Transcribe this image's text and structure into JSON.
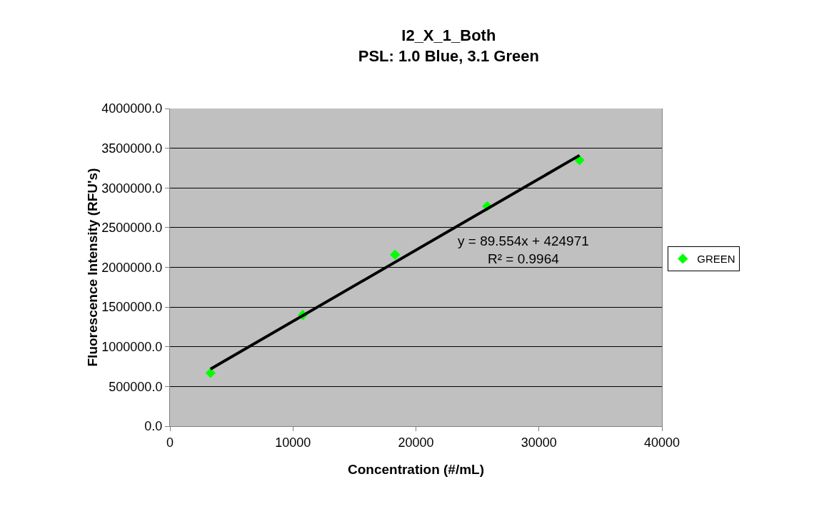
{
  "chart_data": {
    "type": "scatter",
    "title": "I2_X_1_Both\nPSL: 1.0 Blue, 3.1 Green",
    "xlabel": "Concentration (#/mL)",
    "ylabel": "Fluorescence Intensity (RFU's)",
    "annotations": [
      "y = 89.554x + 424971\nR² = 0.9964"
    ],
    "x": [
      3300,
      10800,
      18300,
      25800,
      33300
    ],
    "series": [
      {
        "name": "GREEN",
        "color": "#00ff00",
        "values": [
          670000,
          1400000,
          2160000,
          2770000,
          3350000
        ],
        "marker": "diamond"
      },
      {
        "type": "line",
        "color": "#000000",
        "x": [
          3300,
          33300
        ],
        "values": [
          720000,
          3410000
        ],
        "marker": "none",
        "line_style": "solid"
      }
    ],
    "xlim": [
      0,
      40000
    ],
    "xticks": [
      0,
      10000,
      20000,
      30000,
      40000
    ],
    "ylim": [
      0,
      4000000
    ],
    "yticks": [
      {
        "value": 0,
        "label": "0.0"
      },
      {
        "value": 500000,
        "label": "500000.0"
      },
      {
        "value": 1000000,
        "label": "1000000.0"
      },
      {
        "value": 1500000,
        "label": "1500000.0"
      },
      {
        "value": 2000000,
        "label": "2000000.0"
      },
      {
        "value": 2500000,
        "label": "2500000.0"
      },
      {
        "value": 3000000,
        "label": "3000000.0"
      },
      {
        "value": 3500000,
        "label": "3500000.0"
      },
      {
        "value": 4000000,
        "label": "4000000.0"
      }
    ],
    "grid": "y",
    "legend": "right"
  }
}
